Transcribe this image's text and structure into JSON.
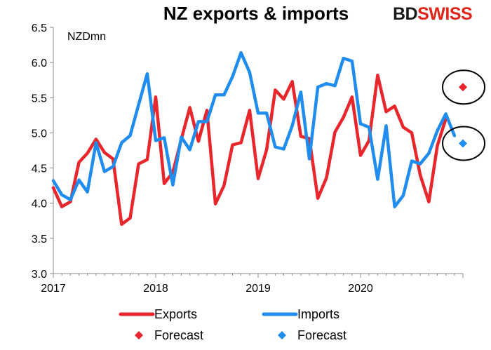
{
  "header": {
    "title": "NZ exports & imports",
    "logo_left": "BD",
    "logo_right": "SWISS"
  },
  "chart_data": {
    "type": "line",
    "unit_label": "NZDmn",
    "xlabels": [
      "2017",
      "2018",
      "2019",
      "2020"
    ],
    "yticks": [
      "3.0",
      "3.5",
      "4.0",
      "4.5",
      "5.0",
      "5.5",
      "6.0",
      "6.5"
    ],
    "ylim": [
      3.0,
      6.5
    ],
    "xlim": [
      2017.0,
      2021.0
    ],
    "grid": false,
    "legend_position": "bottom",
    "series": [
      {
        "name": "Exports",
        "color": "#e8262b",
        "x": [
          2017.0,
          2017.083,
          2017.167,
          2017.25,
          2017.333,
          2017.417,
          2017.5,
          2017.583,
          2017.667,
          2017.75,
          2017.833,
          2017.917,
          2018.0,
          2018.083,
          2018.167,
          2018.25,
          2018.333,
          2018.417,
          2018.5,
          2018.583,
          2018.667,
          2018.75,
          2018.833,
          2018.917,
          2019.0,
          2019.083,
          2019.167,
          2019.25,
          2019.333,
          2019.417,
          2019.5,
          2019.583,
          2019.667,
          2019.75,
          2019.833,
          2019.917,
          2020.0,
          2020.083,
          2020.167,
          2020.25,
          2020.333,
          2020.417,
          2020.5,
          2020.583,
          2020.667,
          2020.75,
          2020.833
        ],
        "values": [
          4.22,
          3.95,
          4.02,
          4.58,
          4.71,
          4.91,
          4.72,
          4.63,
          3.7,
          3.79,
          4.56,
          4.62,
          5.51,
          4.28,
          4.44,
          4.91,
          5.36,
          4.88,
          5.32,
          3.99,
          4.25,
          4.83,
          4.86,
          5.32,
          4.35,
          4.76,
          5.61,
          5.48,
          5.73,
          4.95,
          4.92,
          4.07,
          4.36,
          5.01,
          5.22,
          5.51,
          4.68,
          4.89,
          5.82,
          5.3,
          5.38,
          5.08,
          5.0,
          4.4,
          4.02,
          4.82,
          5.2
        ]
      },
      {
        "name": "Imports",
        "color": "#1f8cf0",
        "x": [
          2017.0,
          2017.083,
          2017.167,
          2017.25,
          2017.333,
          2017.417,
          2017.5,
          2017.583,
          2017.667,
          2017.75,
          2017.833,
          2017.917,
          2018.0,
          2018.083,
          2018.167,
          2018.25,
          2018.333,
          2018.417,
          2018.5,
          2018.583,
          2018.667,
          2018.75,
          2018.833,
          2018.917,
          2019.0,
          2019.083,
          2019.167,
          2019.25,
          2019.333,
          2019.417,
          2019.5,
          2019.583,
          2019.667,
          2019.75,
          2019.833,
          2019.917,
          2020.0,
          2020.083,
          2020.167,
          2020.25,
          2020.333,
          2020.417,
          2020.5,
          2020.583,
          2020.667,
          2020.75,
          2020.833,
          2020.917
        ],
        "values": [
          4.32,
          4.12,
          4.05,
          4.33,
          4.16,
          4.86,
          4.45,
          4.52,
          4.86,
          4.96,
          5.4,
          5.84,
          4.89,
          4.93,
          4.26,
          4.94,
          4.76,
          5.16,
          5.16,
          5.54,
          5.54,
          5.8,
          6.14,
          5.86,
          5.28,
          5.28,
          4.8,
          4.77,
          5.1,
          5.58,
          4.63,
          5.65,
          5.7,
          5.67,
          6.06,
          6.02,
          5.13,
          5.08,
          4.34,
          5.1,
          3.95,
          4.11,
          4.6,
          4.56,
          4.71,
          5.03,
          5.27,
          4.96
        ]
      },
      {
        "name": "Forecast",
        "type": "scatter",
        "color": "#e8262b",
        "x": [
          2021.0
        ],
        "values": [
          5.65
        ]
      },
      {
        "name": "Forecast",
        "type": "scatter",
        "color": "#1f8cf0",
        "x": [
          2021.0
        ],
        "values": [
          4.85
        ]
      }
    ]
  }
}
